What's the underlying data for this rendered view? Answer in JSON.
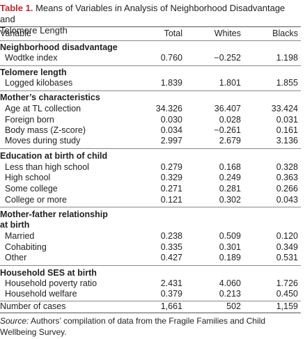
{
  "caption": {
    "label": "Table 1.",
    "text_line1": "Means of Variables in Analysis of Neighborhood Disadvantage and",
    "text_line2": "Telomere Length"
  },
  "columns": {
    "variable": "Variable",
    "total": "Total",
    "whites": "Whites",
    "blacks": "Blacks"
  },
  "sections": {
    "neighborhood": {
      "title": "Neighborhood disadvantage",
      "rows": [
        {
          "label": "Wodtke index",
          "total": "0.760",
          "whites": "−0.252",
          "blacks": "1.198"
        }
      ]
    },
    "telomere": {
      "title": "Telomere length",
      "rows": [
        {
          "label": "Logged kilobases",
          "total": "1.839",
          "whites": "1.801",
          "blacks": "1.855"
        }
      ]
    },
    "mother": {
      "title": "Mother’s characteristics",
      "rows": [
        {
          "label": "Age at TL collection",
          "total": "34.326",
          "whites": "36.407",
          "blacks": "33.424"
        },
        {
          "label": "Foreign born",
          "total": "0.030",
          "whites": "0.028",
          "blacks": "0.031"
        },
        {
          "label": "Body mass (Z-score)",
          "total": "0.034",
          "whites": "−0.261",
          "blacks": "0.161"
        },
        {
          "label": "Moves during study",
          "total": "2.997",
          "whites": "2.679",
          "blacks": "3.136"
        }
      ]
    },
    "education": {
      "title": "Education at birth of child",
      "rows": [
        {
          "label": "Less than high school",
          "total": "0.279",
          "whites": "0.168",
          "blacks": "0.328"
        },
        {
          "label": "High school",
          "total": "0.329",
          "whites": "0.249",
          "blacks": "0.363"
        },
        {
          "label": "Some college",
          "total": "0.271",
          "whites": "0.281",
          "blacks": "0.266"
        },
        {
          "label": "College or more",
          "total": "0.121",
          "whites": "0.302",
          "blacks": "0.043"
        }
      ]
    },
    "relationship": {
      "title_line1": "Mother-father relationship",
      "title_line2": "at birth",
      "rows": [
        {
          "label": "Married",
          "total": "0.238",
          "whites": "0.509",
          "blacks": "0.120"
        },
        {
          "label": "Cohabiting",
          "total": "0.335",
          "whites": "0.301",
          "blacks": "0.349"
        },
        {
          "label": "Other",
          "total": "0.427",
          "whites": "0.189",
          "blacks": "0.531"
        }
      ]
    },
    "household": {
      "title": "Household SES at birth",
      "rows": [
        {
          "label": "Household poverty ratio",
          "total": "2.431",
          "whites": "4.060",
          "blacks": "1.726"
        },
        {
          "label": "Household welfare",
          "total": "0.379",
          "whites": "0.213",
          "blacks": "0.450"
        }
      ]
    }
  },
  "cases": {
    "label": "Number of cases",
    "total": "1,661",
    "whites": "502",
    "blacks": "1,159"
  },
  "source": {
    "label": "Source:",
    "text": "Authors’ compilation of data from the Fragile Families and Child Wellbeing Survey."
  }
}
